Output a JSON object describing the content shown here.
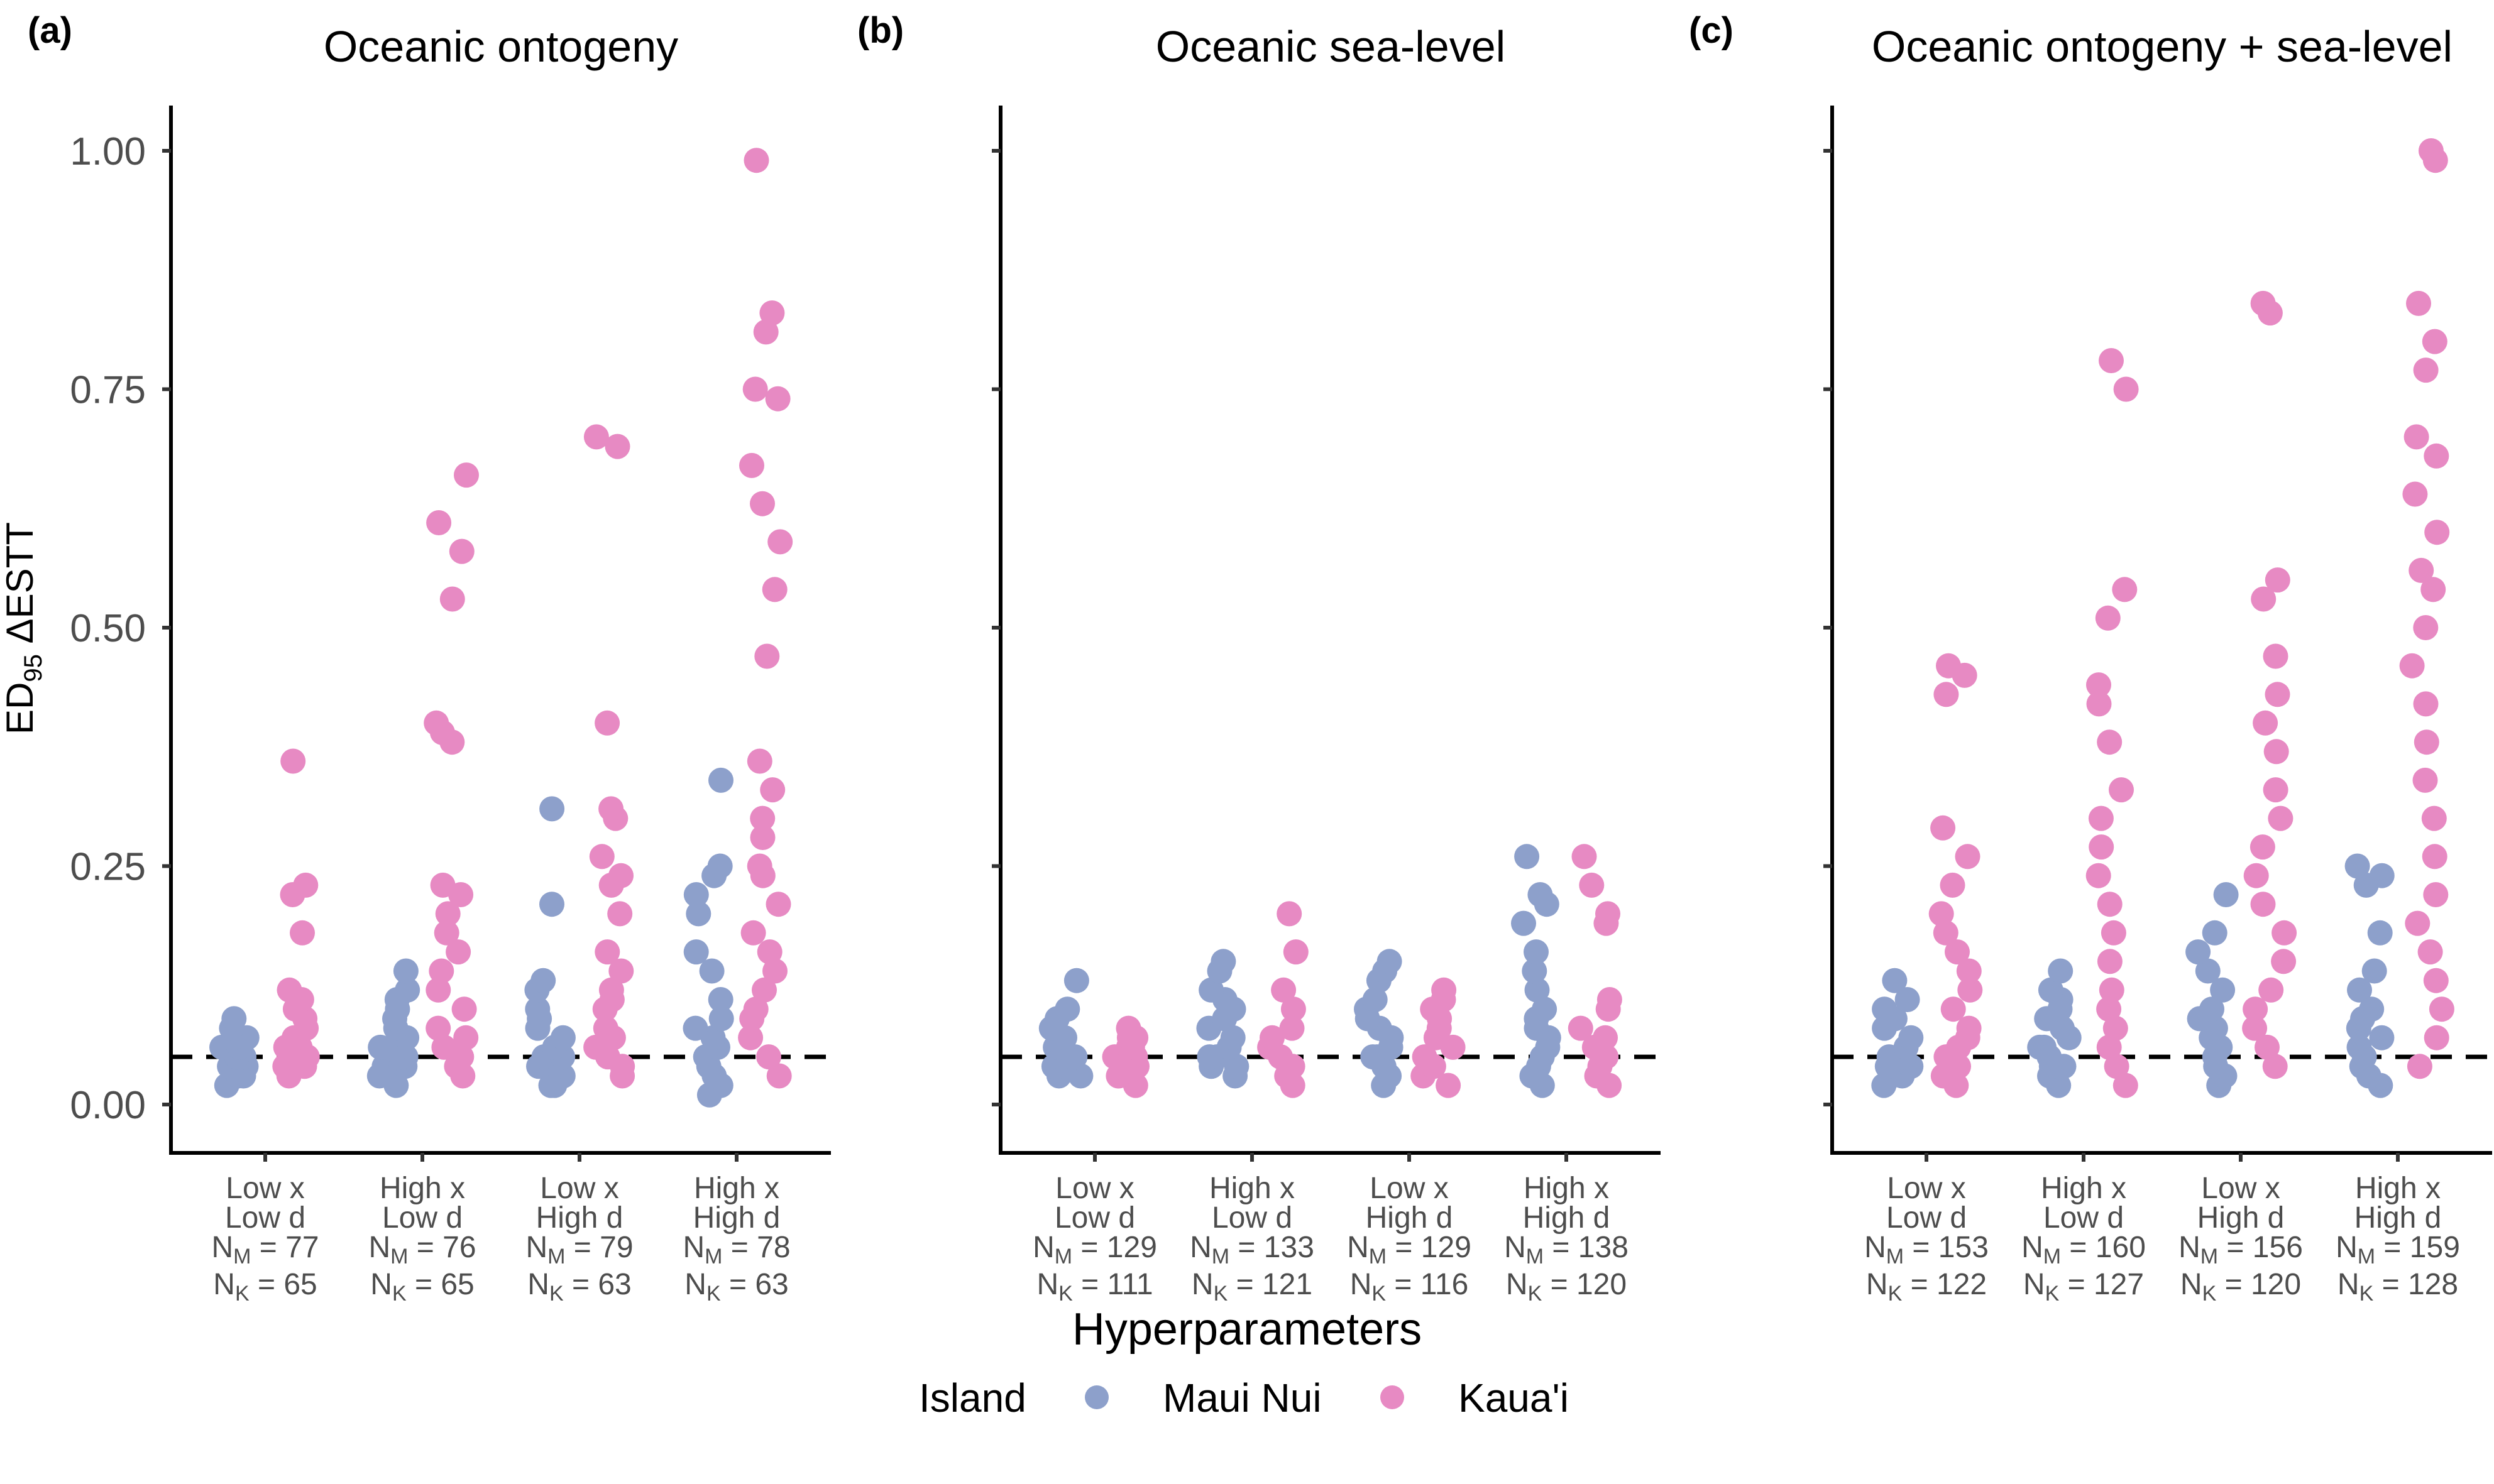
{
  "figure": {
    "ylabel_main": "ED",
    "ylabel_sub": "95",
    "ylabel_rest": " ΔESTT",
    "xlabel": "Hyperparameters",
    "legend": {
      "title": "Island",
      "entries": [
        {
          "label": "Maui Nui",
          "color": "#8DA0CB"
        },
        {
          "label": "Kaua'i",
          "color": "#E78AC3"
        }
      ]
    },
    "reference_line": 0.05,
    "y_ticks": [
      "0.00",
      "0.25",
      "0.50",
      "0.75",
      "1.00"
    ]
  },
  "chart_data": [
    {
      "panel": "(a)",
      "type": "scatter",
      "title": "Oceanic ontogeny",
      "ylim": [
        0,
        1
      ],
      "categories": [
        {
          "line1": "Low x",
          "line2": "Low d",
          "nm": "77",
          "nk": "65"
        },
        {
          "line1": "High x",
          "line2": "Low d",
          "nm": "76",
          "nk": "65"
        },
        {
          "line1": "Low x",
          "line2": "High d",
          "nm": "79",
          "nk": "63"
        },
        {
          "line1": "High x",
          "line2": "High d",
          "nm": "78",
          "nk": "63"
        }
      ],
      "series": [
        {
          "name": "Maui Nui",
          "values": [
            [
              0.02,
              0.03,
              0.03,
              0.04,
              0.04,
              0.04,
              0.05,
              0.05,
              0.05,
              0.05,
              0.06,
              0.06,
              0.06,
              0.07,
              0.07,
              0.08,
              0.09
            ],
            [
              0.02,
              0.03,
              0.03,
              0.04,
              0.04,
              0.05,
              0.05,
              0.05,
              0.06,
              0.06,
              0.07,
              0.08,
              0.09,
              0.1,
              0.11,
              0.12,
              0.14
            ],
            [
              0.02,
              0.02,
              0.03,
              0.04,
              0.04,
              0.05,
              0.05,
              0.06,
              0.07,
              0.08,
              0.09,
              0.1,
              0.12,
              0.13,
              0.21,
              0.31
            ],
            [
              0.01,
              0.02,
              0.03,
              0.04,
              0.05,
              0.06,
              0.07,
              0.08,
              0.09,
              0.11,
              0.14,
              0.16,
              0.2,
              0.22,
              0.24,
              0.25,
              0.34
            ]
          ]
        },
        {
          "name": "Kaua'i",
          "values": [
            [
              0.03,
              0.04,
              0.04,
              0.05,
              0.05,
              0.06,
              0.06,
              0.07,
              0.07,
              0.08,
              0.09,
              0.1,
              0.11,
              0.12,
              0.18,
              0.22,
              0.23,
              0.36
            ],
            [
              0.03,
              0.04,
              0.05,
              0.06,
              0.07,
              0.08,
              0.1,
              0.12,
              0.14,
              0.16,
              0.18,
              0.2,
              0.22,
              0.23,
              0.38,
              0.39,
              0.4,
              0.53,
              0.58,
              0.61,
              0.66
            ],
            [
              0.03,
              0.04,
              0.05,
              0.06,
              0.07,
              0.08,
              0.1,
              0.11,
              0.12,
              0.14,
              0.16,
              0.2,
              0.23,
              0.24,
              0.26,
              0.3,
              0.31,
              0.4,
              0.69,
              0.7
            ],
            [
              0.03,
              0.05,
              0.07,
              0.09,
              0.1,
              0.12,
              0.14,
              0.16,
              0.18,
              0.21,
              0.24,
              0.25,
              0.28,
              0.3,
              0.33,
              0.36,
              0.47,
              0.54,
              0.59,
              0.63,
              0.67,
              0.74,
              0.75,
              0.81,
              0.83,
              0.99
            ]
          ]
        }
      ]
    },
    {
      "panel": "(b)",
      "type": "scatter",
      "title": "Oceanic sea-level",
      "ylim": [
        0,
        1
      ],
      "categories": [
        {
          "line1": "Low x",
          "line2": "Low d",
          "nm": "129",
          "nk": "111"
        },
        {
          "line1": "High x",
          "line2": "Low d",
          "nm": "133",
          "nk": "121"
        },
        {
          "line1": "Low x",
          "line2": "High d",
          "nm": "129",
          "nk": "116"
        },
        {
          "line1": "High x",
          "line2": "High d",
          "nm": "138",
          "nk": "120"
        }
      ],
      "series": [
        {
          "name": "Maui Nui",
          "values": [
            [
              0.03,
              0.03,
              0.04,
              0.04,
              0.05,
              0.05,
              0.05,
              0.06,
              0.06,
              0.07,
              0.08,
              0.09,
              0.1,
              0.13
            ],
            [
              0.03,
              0.04,
              0.04,
              0.05,
              0.05,
              0.06,
              0.07,
              0.08,
              0.09,
              0.1,
              0.11,
              0.12,
              0.14,
              0.15
            ],
            [
              0.02,
              0.03,
              0.04,
              0.05,
              0.05,
              0.06,
              0.07,
              0.08,
              0.09,
              0.1,
              0.11,
              0.13,
              0.14,
              0.15
            ],
            [
              0.02,
              0.03,
              0.04,
              0.05,
              0.06,
              0.07,
              0.08,
              0.09,
              0.1,
              0.12,
              0.14,
              0.16,
              0.19,
              0.21,
              0.22,
              0.26
            ]
          ]
        },
        {
          "name": "Kaua'i",
          "values": [
            [
              0.02,
              0.03,
              0.03,
              0.04,
              0.04,
              0.05,
              0.05,
              0.06,
              0.06,
              0.07,
              0.07,
              0.08
            ],
            [
              0.02,
              0.03,
              0.04,
              0.05,
              0.06,
              0.07,
              0.08,
              0.1,
              0.12,
              0.16,
              0.2
            ],
            [
              0.02,
              0.03,
              0.04,
              0.05,
              0.06,
              0.07,
              0.08,
              0.09,
              0.1,
              0.11,
              0.12
            ],
            [
              0.02,
              0.03,
              0.04,
              0.05,
              0.06,
              0.07,
              0.08,
              0.1,
              0.11,
              0.19,
              0.2,
              0.23,
              0.26
            ]
          ]
        }
      ]
    },
    {
      "panel": "(c)",
      "type": "scatter",
      "title": "Oceanic ontogeny + sea-level",
      "ylim": [
        0,
        1
      ],
      "categories": [
        {
          "line1": "Low x",
          "line2": "Low d",
          "nm": "153",
          "nk": "122"
        },
        {
          "line1": "High x",
          "line2": "Low d",
          "nm": "160",
          "nk": "127"
        },
        {
          "line1": "Low x",
          "line2": "High d",
          "nm": "156",
          "nk": "120"
        },
        {
          "line1": "High x",
          "line2": "High d",
          "nm": "159",
          "nk": "128"
        }
      ],
      "series": [
        {
          "name": "Maui Nui",
          "values": [
            [
              0.02,
              0.03,
              0.03,
              0.04,
              0.04,
              0.05,
              0.05,
              0.06,
              0.07,
              0.08,
              0.09,
              0.1,
              0.11,
              0.13
            ],
            [
              0.02,
              0.03,
              0.04,
              0.04,
              0.05,
              0.06,
              0.06,
              0.07,
              0.08,
              0.09,
              0.1,
              0.11,
              0.12,
              0.14
            ],
            [
              0.02,
              0.03,
              0.04,
              0.05,
              0.06,
              0.07,
              0.08,
              0.09,
              0.1,
              0.12,
              0.14,
              0.16,
              0.18,
              0.22
            ],
            [
              0.02,
              0.03,
              0.04,
              0.05,
              0.06,
              0.07,
              0.08,
              0.09,
              0.1,
              0.12,
              0.14,
              0.18,
              0.23,
              0.24,
              0.25
            ]
          ]
        },
        {
          "name": "Kaua'i",
          "values": [
            [
              0.02,
              0.03,
              0.04,
              0.05,
              0.06,
              0.07,
              0.08,
              0.1,
              0.12,
              0.14,
              0.16,
              0.18,
              0.2,
              0.23,
              0.26,
              0.29,
              0.43,
              0.45,
              0.46
            ],
            [
              0.02,
              0.04,
              0.06,
              0.08,
              0.1,
              0.12,
              0.15,
              0.18,
              0.21,
              0.24,
              0.27,
              0.3,
              0.33,
              0.38,
              0.42,
              0.44,
              0.51,
              0.54,
              0.75,
              0.78
            ],
            [
              0.04,
              0.06,
              0.08,
              0.1,
              0.12,
              0.15,
              0.18,
              0.21,
              0.24,
              0.27,
              0.3,
              0.33,
              0.37,
              0.4,
              0.43,
              0.47,
              0.53,
              0.55,
              0.83,
              0.84
            ],
            [
              0.04,
              0.07,
              0.1,
              0.13,
              0.16,
              0.19,
              0.22,
              0.26,
              0.3,
              0.34,
              0.38,
              0.42,
              0.46,
              0.5,
              0.54,
              0.56,
              0.6,
              0.64,
              0.68,
              0.7,
              0.77,
              0.8,
              0.84,
              0.99,
              1.0
            ]
          ]
        }
      ]
    }
  ]
}
